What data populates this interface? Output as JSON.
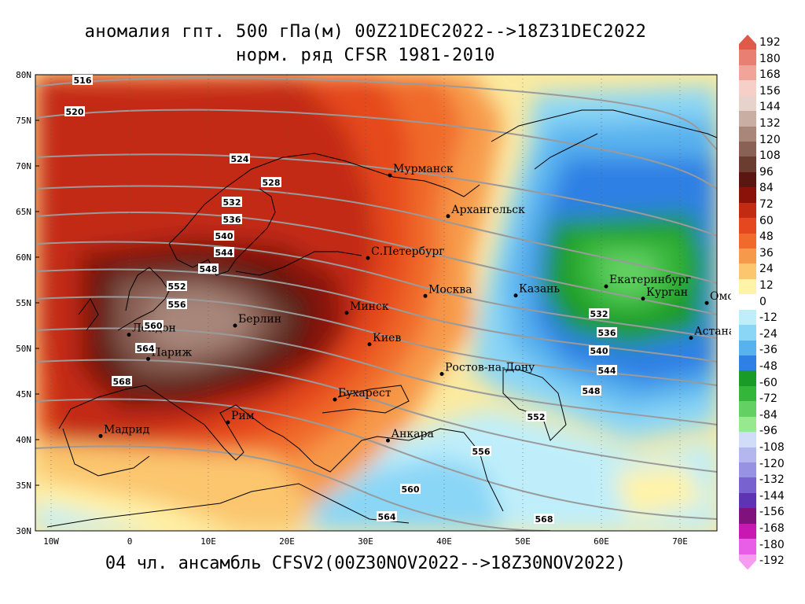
{
  "title_line1": "аномалия гпт. 500 гПа(м) 00Z21DEC2022-->18Z31DEC2022",
  "title_line2": "норм. ряд CFSR 1981-2010",
  "bottom_caption": "04 чл. ансамбль CFSV2(00Z30NOV2022-->18Z30NOV2022)",
  "lat_labels": [
    "80N",
    "75N",
    "70N",
    "65N",
    "60N",
    "55N",
    "50N",
    "45N",
    "40N",
    "35N",
    "30N"
  ],
  "lon_labels": [
    "10W",
    "0",
    "10E",
    "20E",
    "30E",
    "40E",
    "50E",
    "60E",
    "70E"
  ],
  "cities": [
    {
      "name": "Мурманск",
      "lon": 33.1,
      "lat": 68.97
    },
    {
      "name": "Архангельск",
      "lon": 40.5,
      "lat": 64.5
    },
    {
      "name": "С.Петербург",
      "lon": 30.3,
      "lat": 59.9
    },
    {
      "name": "Москва",
      "lon": 37.6,
      "lat": 55.75
    },
    {
      "name": "Казань",
      "lon": 49.1,
      "lat": 55.8
    },
    {
      "name": "Екатеринбург",
      "lon": 60.6,
      "lat": 56.8
    },
    {
      "name": "Курган",
      "lon": 65.3,
      "lat": 55.45
    },
    {
      "name": "Омск",
      "lon": 73.4,
      "lat": 54.98
    },
    {
      "name": "Астана",
      "lon": 71.4,
      "lat": 51.15
    },
    {
      "name": "Минск",
      "lon": 27.6,
      "lat": 53.9
    },
    {
      "name": "Киев",
      "lon": 30.5,
      "lat": 50.45
    },
    {
      "name": "Берлин",
      "lon": 13.4,
      "lat": 52.5
    },
    {
      "name": "Лондон",
      "lon": -0.1,
      "lat": 51.5
    },
    {
      "name": "Париж",
      "lon": 2.35,
      "lat": 48.85
    },
    {
      "name": "Ростов-на-Дону",
      "lon": 39.7,
      "lat": 47.2
    },
    {
      "name": "Бухарест",
      "lon": 26.1,
      "lat": 44.4
    },
    {
      "name": "Рим",
      "lon": 12.5,
      "lat": 41.9
    },
    {
      "name": "Мадрид",
      "lon": -3.7,
      "lat": 40.4
    },
    {
      "name": "Анкара",
      "lon": 32.85,
      "lat": 39.9
    }
  ],
  "contour_labels": [
    "516",
    "520",
    "524",
    "528",
    "532",
    "536",
    "540",
    "544",
    "548",
    "552",
    "556",
    "560",
    "564",
    "568",
    "532",
    "536",
    "540",
    "544",
    "548",
    "552",
    "556",
    "560",
    "564",
    "568"
  ],
  "legend": {
    "labels": [
      "192",
      "180",
      "168",
      "156",
      "144",
      "132",
      "120",
      "108",
      "96",
      "84",
      "72",
      "60",
      "48",
      "36",
      "24",
      "12",
      "0",
      "-12",
      "-24",
      "-36",
      "-48",
      "-60",
      "-72",
      "-84",
      "-96",
      "-108",
      "-120",
      "-132",
      "-144",
      "-156",
      "-168",
      "-180",
      "-192"
    ],
    "colors": [
      "#e05a4a",
      "#e97e72",
      "#f0a49a",
      "#f6cfc8",
      "#e8d3cc",
      "#c9aea3",
      "#a8867a",
      "#8a6155",
      "#6b3d31",
      "#5a1610",
      "#8b1208",
      "#c32a12",
      "#e5481e",
      "#f06a2c",
      "#f7994a",
      "#fbc66e",
      "#fff3a8",
      "#ffffff",
      "#bfeefa",
      "#8ad6f6",
      "#58b2ee",
      "#2f80e4",
      "#1a9a26",
      "#34b63a",
      "#62d062",
      "#96e98e",
      "#d0dcf8",
      "#b3b7ee",
      "#9792e2",
      "#7862cf",
      "#5c34b4",
      "#80127e",
      "#c818b4",
      "#e85ee6",
      "#f59cf1"
    ]
  }
}
